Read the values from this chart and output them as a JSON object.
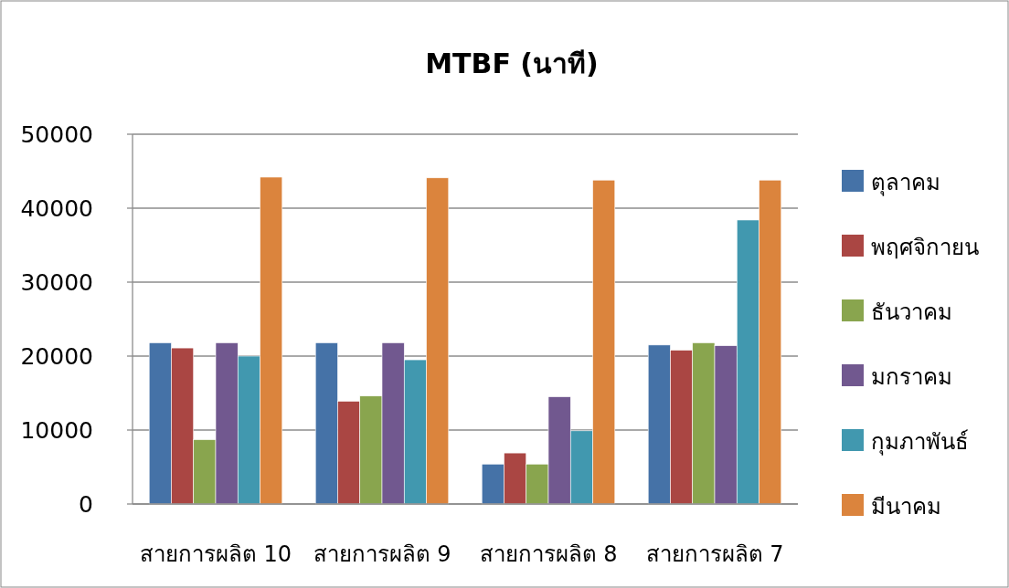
{
  "chart_data": {
    "type": "bar",
    "title": "MTBF (นาที)",
    "categories": [
      "สายการผลิต 10",
      "สายการผลิต 9",
      "สายการผลิต 8",
      "สายการผลิต 7"
    ],
    "series": [
      {
        "name": "ตุลาคม",
        "color": "#4572a7",
        "values": [
          21800,
          21800,
          5400,
          21500
        ]
      },
      {
        "name": "พฤศจิกายน",
        "color": "#aa4643",
        "values": [
          21100,
          13900,
          6900,
          20800
        ]
      },
      {
        "name": "ธันวาคม",
        "color": "#89a54e",
        "values": [
          8700,
          14600,
          5400,
          21800
        ]
      },
      {
        "name": "มกราคม",
        "color": "#71588f",
        "values": [
          21800,
          21800,
          14500,
          21400
        ]
      },
      {
        "name": "กุมภาพันธ์",
        "color": "#4198af",
        "values": [
          20000,
          19500,
          9900,
          38400
        ]
      },
      {
        "name": "มีนาคม",
        "color": "#db843d",
        "values": [
          44200,
          44100,
          43800,
          43800
        ]
      }
    ],
    "ylim": [
      0,
      50000
    ],
    "yticks": [
      0,
      10000,
      20000,
      30000,
      40000,
      50000
    ],
    "grid": "y",
    "legend": "right"
  }
}
